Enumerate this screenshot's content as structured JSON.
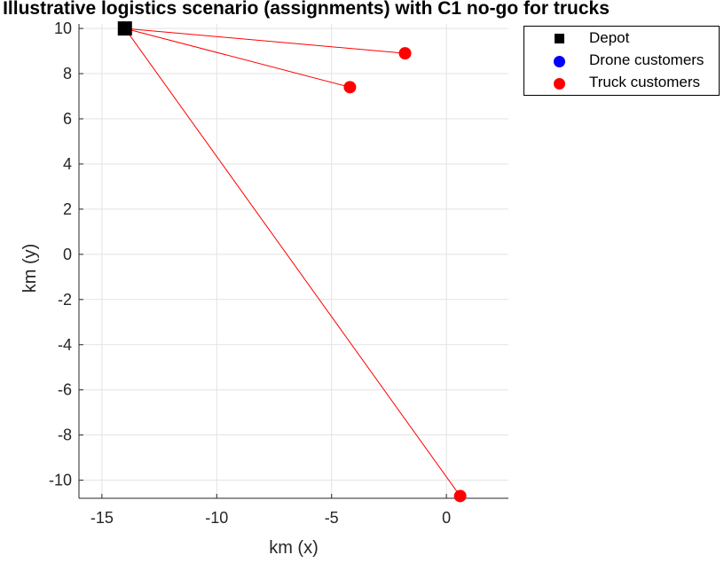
{
  "chart_data": {
    "type": "scatter",
    "title": "Illustrative logistics scenario (assignments) with C1 no-go for trucks",
    "xlabel": "km (x)",
    "ylabel": "km (y)",
    "xlim": [
      -16,
      2.7
    ],
    "ylim": [
      -10.8,
      10.2
    ],
    "xticks": [
      -15,
      -10,
      -5,
      0
    ],
    "yticks": [
      10,
      8,
      6,
      4,
      2,
      0,
      -2,
      -4,
      -6,
      -8,
      -10
    ],
    "xtick_labels": [
      "-15",
      "-10",
      "-5",
      "0"
    ],
    "ytick_labels": [
      "10",
      "8",
      "6",
      "4",
      "2",
      "0",
      "-2",
      "-4",
      "-6",
      "-8",
      "-10"
    ],
    "grid": true,
    "legend_position": "outside-top-right",
    "series": [
      {
        "name": "Depot",
        "marker": "square",
        "color": "#000000",
        "points": [
          [
            -14.0,
            10.0
          ]
        ]
      },
      {
        "name": "Drone customers",
        "marker": "circle",
        "color": "#0000ff",
        "points": []
      },
      {
        "name": "Truck customers",
        "marker": "circle",
        "color": "#ff0000",
        "points": [
          [
            -1.8,
            8.9
          ],
          [
            -4.2,
            7.4
          ],
          [
            0.6,
            -10.7
          ]
        ]
      }
    ],
    "routes": [
      {
        "from": [
          -14.0,
          10.0
        ],
        "to": [
          -1.8,
          8.9
        ],
        "color": "#ff0000"
      },
      {
        "from": [
          -14.0,
          10.0
        ],
        "to": [
          -4.2,
          7.4
        ],
        "color": "#ff0000"
      },
      {
        "from": [
          -14.0,
          10.0
        ],
        "to": [
          0.6,
          -10.7
        ],
        "color": "#ff0000"
      }
    ]
  }
}
